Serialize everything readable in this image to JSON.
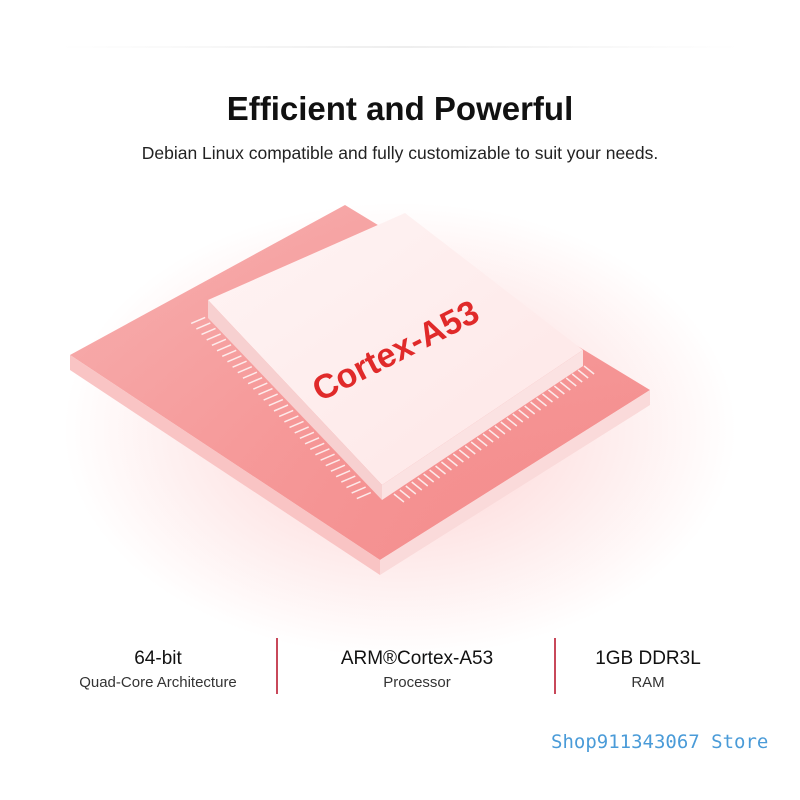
{
  "header": {
    "title": "Efficient and Powerful",
    "subtitle": "Debian Linux compatible and fully customizable to suit your needs."
  },
  "chip": {
    "label": "Cortex-A53",
    "label_color": "#e02a2a",
    "accent": "#f07070"
  },
  "specs": [
    {
      "value": "64-bit",
      "label": "Quad-Core Architecture"
    },
    {
      "value": "ARM®Cortex-A53",
      "label": "Processor"
    },
    {
      "value": "1GB DDR3L",
      "label": "RAM"
    }
  ],
  "divider_color": "#c8485a",
  "watermark": "Shop911343067 Store"
}
